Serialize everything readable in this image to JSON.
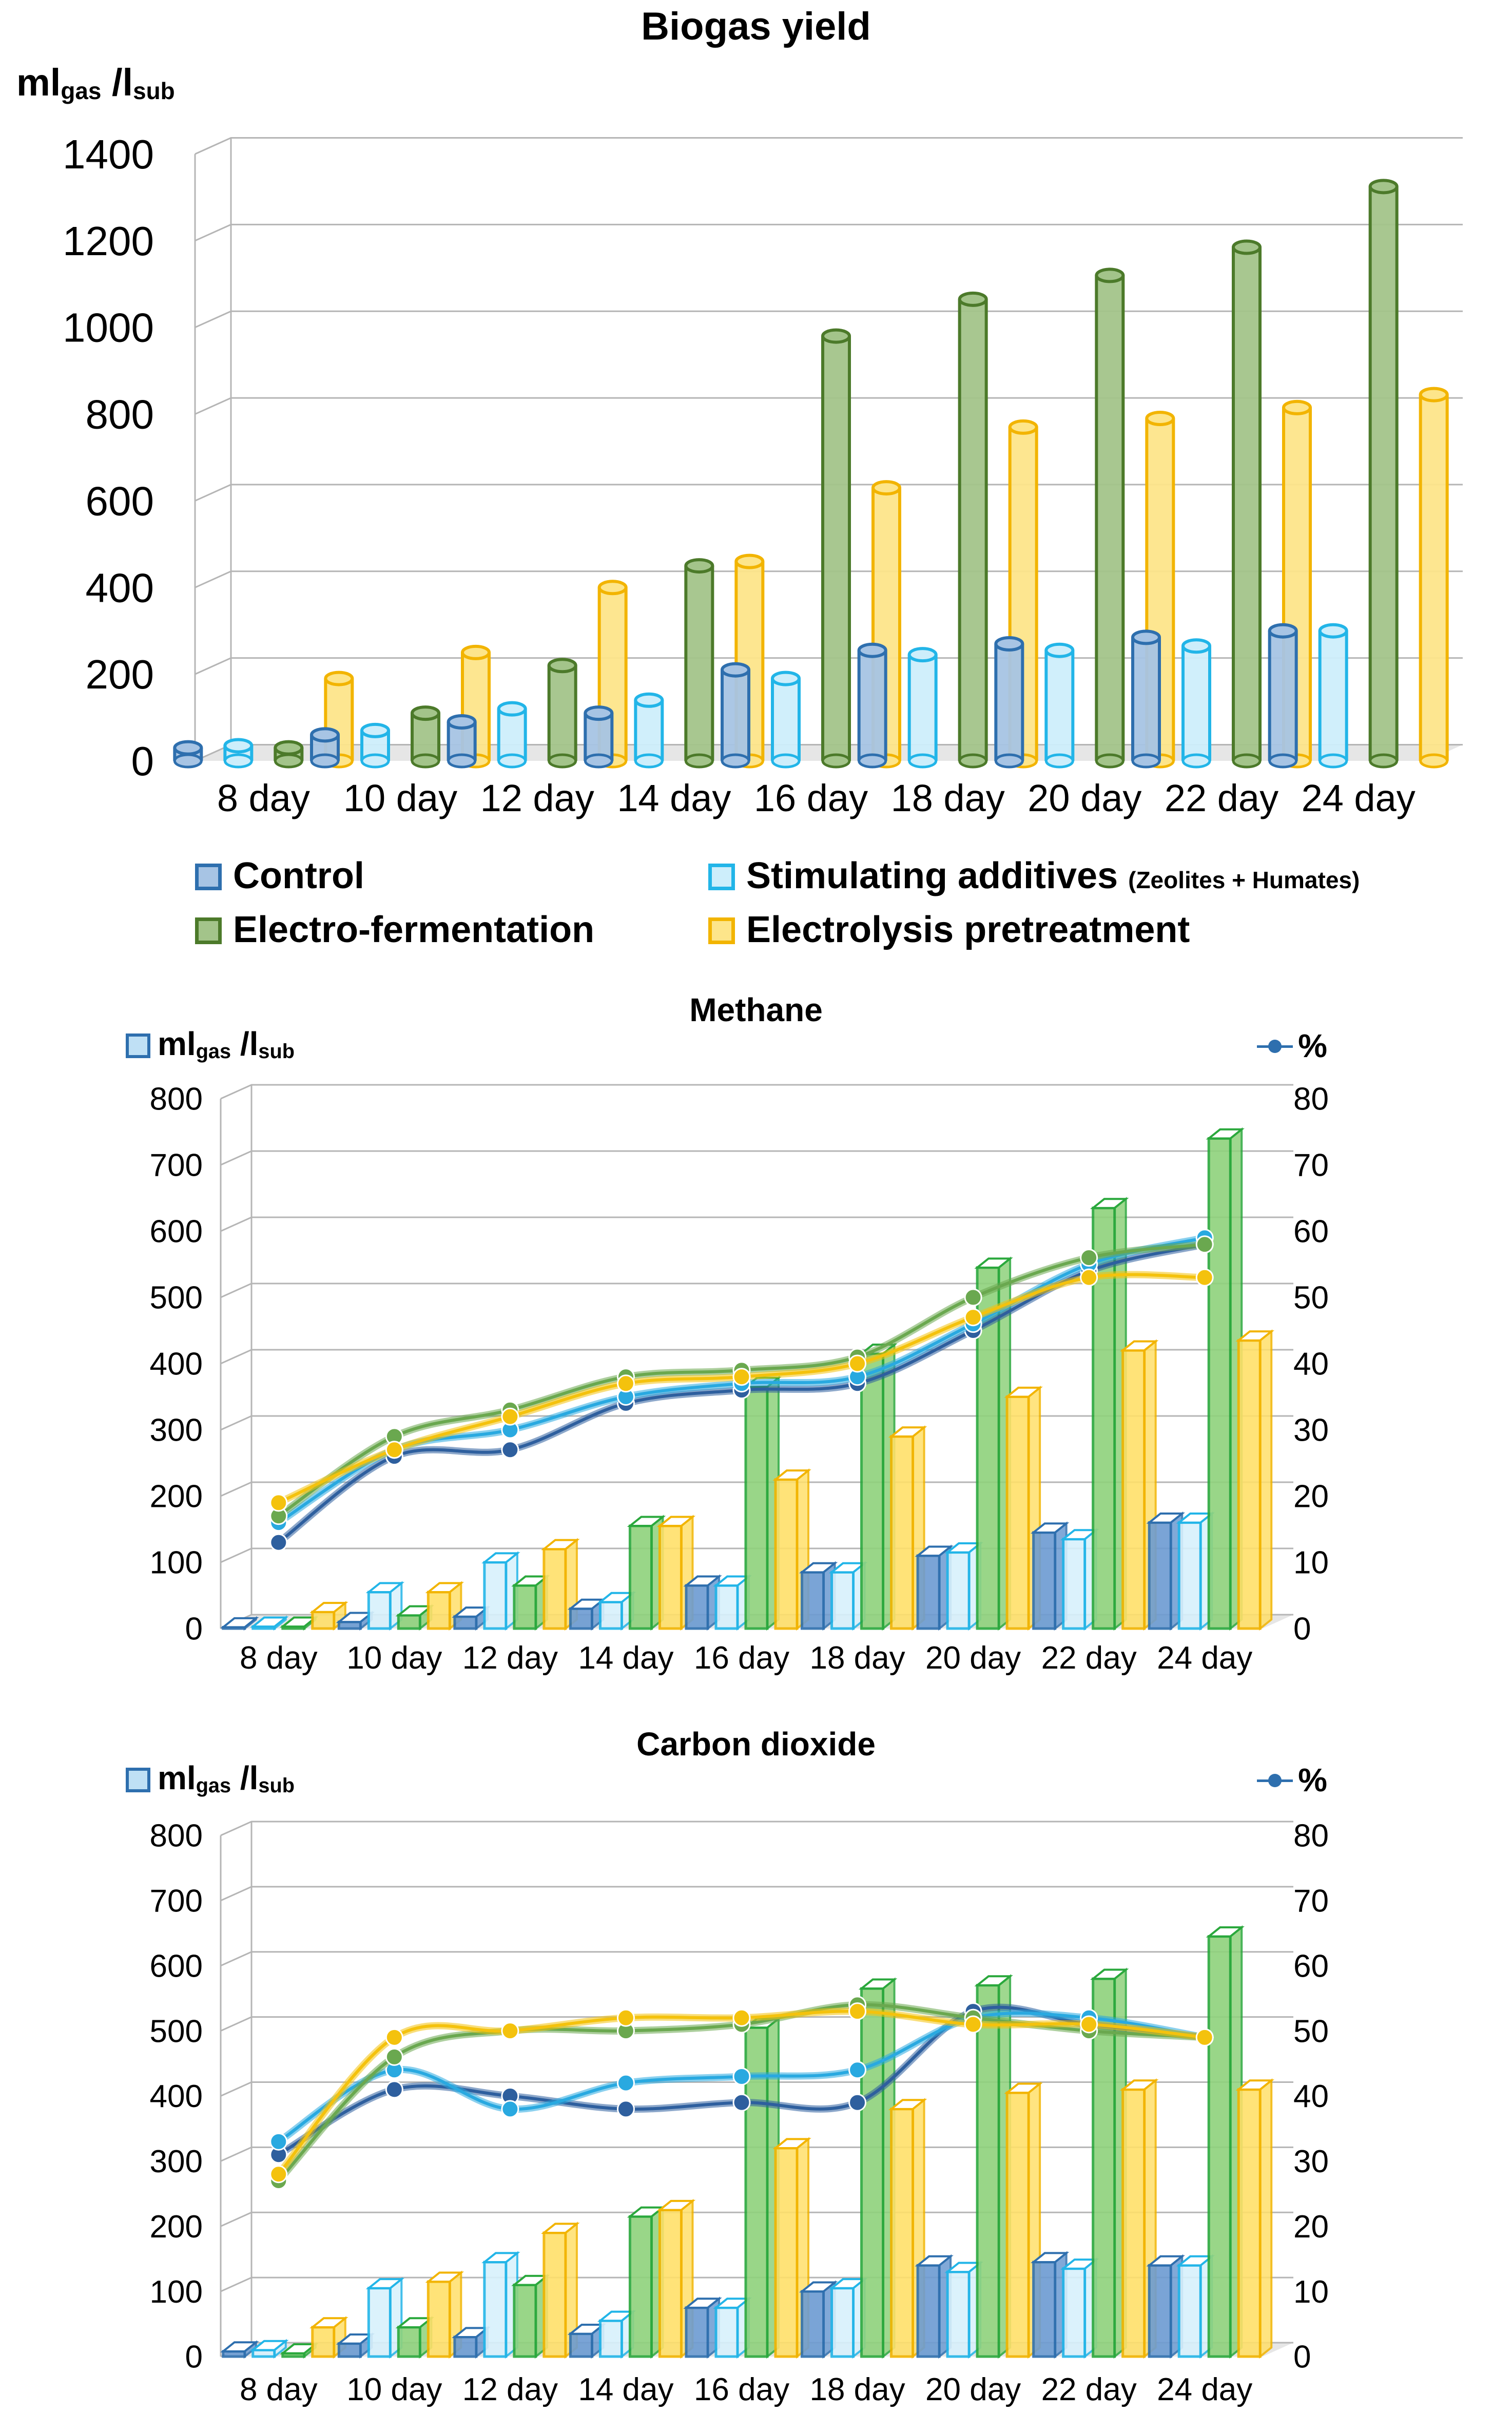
{
  "chart_data": [
    {
      "type": "bar",
      "title": "Biogas yield",
      "ylabel": "ml gas / l sub",
      "ylabel_main": "ml",
      "ylabel_sub1": "gas",
      "ylabel_sep": " /l",
      "ylabel_sub2": "sub",
      "ylim": [
        0,
        1400
      ],
      "yticks": [
        0,
        200,
        400,
        600,
        800,
        1000,
        1200,
        1400
      ],
      "categories": [
        "8 day",
        "10 day",
        "12 day",
        "14 day",
        "16 day",
        "18 day",
        "20 day",
        "22 day",
        "24 day"
      ],
      "series": [
        {
          "name": "Control",
          "values": [
            30,
            60,
            90,
            110,
            210,
            255,
            270,
            285,
            300
          ]
        },
        {
          "name": "Stimulating additives",
          "values": [
            35,
            70,
            120,
            140,
            190,
            245,
            255,
            265,
            300
          ]
        },
        {
          "name": "Electro-fermentation",
          "values": [
            30,
            110,
            220,
            450,
            980,
            1065,
            1120,
            1185,
            1325
          ]
        },
        {
          "name": "Electrolysis pretreatment",
          "values": [
            190,
            250,
            400,
            460,
            630,
            770,
            790,
            815,
            845
          ]
        }
      ]
    },
    {
      "type": "bar+line",
      "title": "Methane",
      "ylabel": "ml gas / l sub",
      "ylabel_main": "ml",
      "ylabel_sub1": "gas",
      "ylabel_sep": " /l",
      "ylabel_sub2": "sub",
      "y2label": "%",
      "ylim": [
        0,
        800
      ],
      "yticks": [
        0,
        100,
        200,
        300,
        400,
        500,
        600,
        700,
        800
      ],
      "y2lim": [
        0,
        80
      ],
      "y2ticks": [
        0,
        10,
        20,
        30,
        40,
        50,
        60,
        70,
        80
      ],
      "categories": [
        "8 day",
        "10 day",
        "12 day",
        "14 day",
        "16 day",
        "18 day",
        "20 day",
        "22 day",
        "24 day"
      ],
      "series": [
        {
          "name": "Control",
          "values": [
            2,
            10,
            18,
            30,
            65,
            85,
            110,
            145,
            160
          ]
        },
        {
          "name": "Stimulating additives",
          "values": [
            3,
            55,
            100,
            40,
            65,
            85,
            115,
            135,
            160
          ]
        },
        {
          "name": "Electro-fermentation",
          "values": [
            3,
            20,
            65,
            155,
            365,
            415,
            545,
            635,
            740
          ]
        },
        {
          "name": "Electrolysis pretreatment",
          "values": [
            25,
            55,
            120,
            155,
            225,
            290,
            350,
            420,
            435
          ]
        }
      ],
      "percent_series": [
        {
          "name": "Control",
          "values": [
            13,
            26,
            27,
            34,
            36,
            37,
            45,
            54,
            58
          ]
        },
        {
          "name": "Stimulating additives",
          "values": [
            16,
            27,
            30,
            35,
            37,
            38,
            46,
            55,
            59
          ]
        },
        {
          "name": "Electro-fermentation",
          "values": [
            17,
            29,
            33,
            38,
            39,
            41,
            50,
            56,
            58
          ]
        },
        {
          "name": "Electrolysis pretreatment",
          "values": [
            19,
            27,
            32,
            37,
            38,
            40,
            47,
            53,
            53
          ]
        }
      ]
    },
    {
      "type": "bar+line",
      "title": "Carbon dioxide",
      "ylabel": "ml gas / l sub",
      "ylabel_main": "ml",
      "ylabel_sub1": "gas",
      "ylabel_sep": " /l",
      "ylabel_sub2": "sub",
      "y2label": "%",
      "ylim": [
        0,
        800
      ],
      "yticks": [
        0,
        100,
        200,
        300,
        400,
        500,
        600,
        700,
        800
      ],
      "y2lim": [
        0,
        80
      ],
      "y2ticks": [
        0,
        10,
        20,
        30,
        40,
        50,
        60,
        70,
        80
      ],
      "categories": [
        "8 day",
        "10 day",
        "12 day",
        "14 day",
        "16 day",
        "18 day",
        "20 day",
        "22 day",
        "24 day"
      ],
      "series": [
        {
          "name": "Control",
          "values": [
            8,
            20,
            30,
            35,
            75,
            100,
            140,
            145,
            140
          ]
        },
        {
          "name": "Stimulating additives",
          "values": [
            10,
            105,
            145,
            55,
            75,
            105,
            130,
            135,
            140
          ]
        },
        {
          "name": "Electro-fermentation",
          "values": [
            5,
            45,
            110,
            215,
            505,
            565,
            570,
            580,
            645
          ]
        },
        {
          "name": "Electrolysis pretreatment",
          "values": [
            45,
            115,
            190,
            225,
            320,
            380,
            405,
            410,
            410
          ]
        }
      ],
      "percent_series": [
        {
          "name": "Control",
          "values": [
            31,
            41,
            40,
            38,
            39,
            39,
            53,
            51,
            49
          ]
        },
        {
          "name": "Stimulating additives",
          "values": [
            33,
            44,
            38,
            42,
            43,
            44,
            52,
            52,
            49
          ]
        },
        {
          "name": "Electro-fermentation",
          "values": [
            27,
            46,
            50,
            50,
            51,
            54,
            52,
            50,
            49
          ]
        },
        {
          "name": "Electrolysis pretreatment",
          "values": [
            28,
            49,
            50,
            52,
            52,
            53,
            51,
            51,
            49
          ]
        }
      ]
    }
  ],
  "legend": {
    "items": [
      {
        "label": "Control",
        "note": ""
      },
      {
        "label": "Stimulating additives",
        "note": "(Zeolites + Humates)"
      },
      {
        "label": "Electro-fermentation",
        "note": ""
      },
      {
        "label": "Electrolysis pretreatment",
        "note": ""
      }
    ]
  },
  "colors": {
    "series_stroke": [
      "#2e6fae",
      "#22b5e8",
      "#4c7a2a",
      "#f2b400"
    ],
    "series_fill": [
      "#a7c4e4",
      "#cdeefb",
      "#a3c48a",
      "#fde58a"
    ],
    "line_pct": [
      "#2e5f9e",
      "#29a9e0",
      "#6aa84f",
      "#f4c20d"
    ],
    "pct_bar_stroke": [
      "#2e6fae",
      "#22b5e8",
      "#2aa83c",
      "#f2b400"
    ],
    "pct_bar_fill": [
      "#6c9bd2",
      "#d8f1fc",
      "#8fd27c",
      "#ffe06a"
    ],
    "grid": "#b5b5b5",
    "floor": "#e6e6e6"
  }
}
